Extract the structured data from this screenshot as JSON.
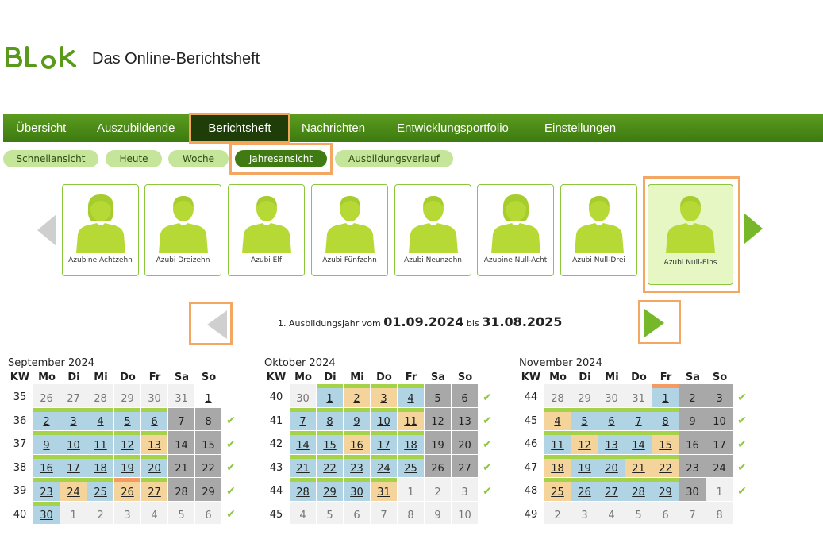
{
  "header": {
    "title": "Das Online-Berichtsheft",
    "logo_text": "BLok"
  },
  "nav": {
    "items": [
      "Übersicht",
      "Auszubildende",
      "Berichtsheft",
      "Nachrichten",
      "Entwicklungsportfolio",
      "Einstellungen"
    ]
  },
  "subnav": {
    "items": [
      "Schnellansicht",
      "Heute",
      "Woche",
      "Jahresansicht",
      "Ausbildungsverlauf"
    ]
  },
  "trainees": [
    "Azubine Achtzehn",
    "Azubi Dreizehn",
    "Azubi Elf",
    "Azubi Fünfzehn",
    "Azubi Neunzehn",
    "Azubine Null-Acht",
    "Azubi Null-Drei",
    "Azubi Null-Eins"
  ],
  "year": {
    "prefix": "1. Ausbildungsjahr vom",
    "from": "01.09.2024",
    "mid": "bis",
    "to": "31.08.2025"
  },
  "weekday_headers": [
    "KW",
    "Mo",
    "Di",
    "Mi",
    "Do",
    "Fr",
    "Sa",
    "So"
  ],
  "colors": {
    "green_bar": "#a4d34a",
    "orange_bar": "#f59a62",
    "blue": "#b0d4e3",
    "orange": "#f4d49b",
    "gray": "#a8a8a8"
  },
  "calendars": [
    {
      "title": "September 2024",
      "weeks": [
        {
          "kw": "35",
          "check": false,
          "days": [
            [
              "26",
              "out",
              ""
            ],
            [
              "27",
              "out",
              ""
            ],
            [
              "28",
              "out",
              ""
            ],
            [
              "29",
              "out",
              ""
            ],
            [
              "30",
              "out",
              ""
            ],
            [
              "31",
              "out",
              ""
            ],
            [
              "1",
              "ul",
              ""
            ]
          ]
        },
        {
          "kw": "36",
          "check": true,
          "days": [
            [
              "2",
              "bl",
              "g"
            ],
            [
              "3",
              "bl",
              "g"
            ],
            [
              "4",
              "bl",
              "g"
            ],
            [
              "5",
              "bl",
              "g"
            ],
            [
              "6",
              "bl",
              "g"
            ],
            [
              "7",
              "dk",
              ""
            ],
            [
              "8",
              "dk",
              ""
            ]
          ]
        },
        {
          "kw": "37",
          "check": true,
          "days": [
            [
              "9",
              "bl",
              "g"
            ],
            [
              "10",
              "bl",
              "g"
            ],
            [
              "11",
              "bl",
              "g"
            ],
            [
              "12",
              "bl",
              "g"
            ],
            [
              "13",
              "or",
              "g"
            ],
            [
              "14",
              "dk",
              ""
            ],
            [
              "15",
              "dk",
              ""
            ]
          ]
        },
        {
          "kw": "38",
          "check": true,
          "days": [
            [
              "16",
              "bl",
              "g"
            ],
            [
              "17",
              "bl",
              "g"
            ],
            [
              "18",
              "bl",
              "g"
            ],
            [
              "19",
              "bl",
              "g"
            ],
            [
              "20",
              "bl",
              "g"
            ],
            [
              "21",
              "dk",
              ""
            ],
            [
              "22",
              "dk",
              ""
            ]
          ]
        },
        {
          "kw": "39",
          "check": true,
          "days": [
            [
              "23",
              "bl",
              "g"
            ],
            [
              "24",
              "or",
              "g"
            ],
            [
              "25",
              "bl",
              "g"
            ],
            [
              "26",
              "or",
              "o"
            ],
            [
              "27",
              "or",
              "g"
            ],
            [
              "28",
              "dk",
              ""
            ],
            [
              "29",
              "dk",
              ""
            ]
          ]
        },
        {
          "kw": "40",
          "check": true,
          "days": [
            [
              "30",
              "bl",
              "g"
            ],
            [
              "1",
              "out",
              ""
            ],
            [
              "2",
              "out",
              ""
            ],
            [
              "3",
              "out",
              ""
            ],
            [
              "4",
              "out",
              ""
            ],
            [
              "5",
              "out",
              ""
            ],
            [
              "6",
              "out",
              ""
            ]
          ]
        }
      ]
    },
    {
      "title": "Oktober 2024",
      "weeks": [
        {
          "kw": "40",
          "check": true,
          "days": [
            [
              "30",
              "out",
              ""
            ],
            [
              "1",
              "bl",
              "g"
            ],
            [
              "2",
              "or",
              "g"
            ],
            [
              "3",
              "or",
              "g"
            ],
            [
              "4",
              "bl",
              "g"
            ],
            [
              "5",
              "dk",
              ""
            ],
            [
              "6",
              "dk",
              ""
            ]
          ]
        },
        {
          "kw": "41",
          "check": true,
          "days": [
            [
              "7",
              "bl",
              "g"
            ],
            [
              "8",
              "bl",
              "g"
            ],
            [
              "9",
              "bl",
              "g"
            ],
            [
              "10",
              "bl",
              "g"
            ],
            [
              "11",
              "or",
              "g"
            ],
            [
              "12",
              "dk",
              ""
            ],
            [
              "13",
              "dk",
              ""
            ]
          ]
        },
        {
          "kw": "42",
          "check": true,
          "days": [
            [
              "14",
              "bl",
              "g"
            ],
            [
              "15",
              "bl",
              "g"
            ],
            [
              "16",
              "or",
              "g"
            ],
            [
              "17",
              "bl",
              "g"
            ],
            [
              "18",
              "bl",
              "g"
            ],
            [
              "19",
              "dk",
              ""
            ],
            [
              "20",
              "dk",
              ""
            ]
          ]
        },
        {
          "kw": "43",
          "check": true,
          "days": [
            [
              "21",
              "bl",
              "g"
            ],
            [
              "22",
              "bl",
              "g"
            ],
            [
              "23",
              "bl",
              "g"
            ],
            [
              "24",
              "bl",
              "g"
            ],
            [
              "25",
              "bl",
              "g"
            ],
            [
              "26",
              "dk",
              ""
            ],
            [
              "27",
              "dk",
              ""
            ]
          ]
        },
        {
          "kw": "44",
          "check": true,
          "days": [
            [
              "28",
              "bl",
              "g"
            ],
            [
              "29",
              "bl",
              "g"
            ],
            [
              "30",
              "bl",
              "g"
            ],
            [
              "31",
              "or",
              "g"
            ],
            [
              "1",
              "out",
              ""
            ],
            [
              "2",
              "out",
              ""
            ],
            [
              "3",
              "out",
              ""
            ]
          ]
        },
        {
          "kw": "45",
          "check": false,
          "days": [
            [
              "4",
              "out",
              ""
            ],
            [
              "5",
              "out",
              ""
            ],
            [
              "6",
              "out",
              ""
            ],
            [
              "7",
              "out",
              ""
            ],
            [
              "8",
              "out",
              ""
            ],
            [
              "9",
              "out",
              ""
            ],
            [
              "10",
              "out",
              ""
            ]
          ]
        }
      ]
    },
    {
      "title": "November 2024",
      "weeks": [
        {
          "kw": "44",
          "check": true,
          "days": [
            [
              "28",
              "out",
              ""
            ],
            [
              "29",
              "out",
              ""
            ],
            [
              "30",
              "out",
              ""
            ],
            [
              "31",
              "out",
              ""
            ],
            [
              "1",
              "bl",
              "o"
            ],
            [
              "2",
              "dk",
              ""
            ],
            [
              "3",
              "dk",
              ""
            ]
          ]
        },
        {
          "kw": "45",
          "check": true,
          "days": [
            [
              "4",
              "or",
              "g"
            ],
            [
              "5",
              "bl",
              "g"
            ],
            [
              "6",
              "bl",
              "g"
            ],
            [
              "7",
              "bl",
              "g"
            ],
            [
              "8",
              "bl",
              "g"
            ],
            [
              "9",
              "dk",
              ""
            ],
            [
              "10",
              "dk",
              ""
            ]
          ]
        },
        {
          "kw": "46",
          "check": true,
          "days": [
            [
              "11",
              "bl",
              "g"
            ],
            [
              "12",
              "or",
              "g"
            ],
            [
              "13",
              "bl",
              "g"
            ],
            [
              "14",
              "bl",
              "g"
            ],
            [
              "15",
              "or",
              "g"
            ],
            [
              "16",
              "dk",
              ""
            ],
            [
              "17",
              "dk",
              ""
            ]
          ]
        },
        {
          "kw": "47",
          "check": true,
          "days": [
            [
              "18",
              "or",
              "g"
            ],
            [
              "19",
              "bl",
              "g"
            ],
            [
              "20",
              "bl",
              "g"
            ],
            [
              "21",
              "or",
              "g"
            ],
            [
              "22",
              "or",
              "g"
            ],
            [
              "23",
              "dk",
              ""
            ],
            [
              "24",
              "dk",
              ""
            ]
          ]
        },
        {
          "kw": "48",
          "check": true,
          "days": [
            [
              "25",
              "or",
              "g"
            ],
            [
              "26",
              "bl",
              "g"
            ],
            [
              "27",
              "bl",
              "g"
            ],
            [
              "28",
              "bl",
              "g"
            ],
            [
              "29",
              "bl",
              "g"
            ],
            [
              "30",
              "dk",
              ""
            ],
            [
              "1",
              "out",
              ""
            ]
          ]
        },
        {
          "kw": "49",
          "check": false,
          "days": [
            [
              "2",
              "out",
              ""
            ],
            [
              "3",
              "out",
              ""
            ],
            [
              "4",
              "out",
              ""
            ],
            [
              "5",
              "out",
              ""
            ],
            [
              "6",
              "out",
              ""
            ],
            [
              "7",
              "out",
              ""
            ],
            [
              "8",
              "out",
              ""
            ]
          ]
        }
      ]
    }
  ]
}
